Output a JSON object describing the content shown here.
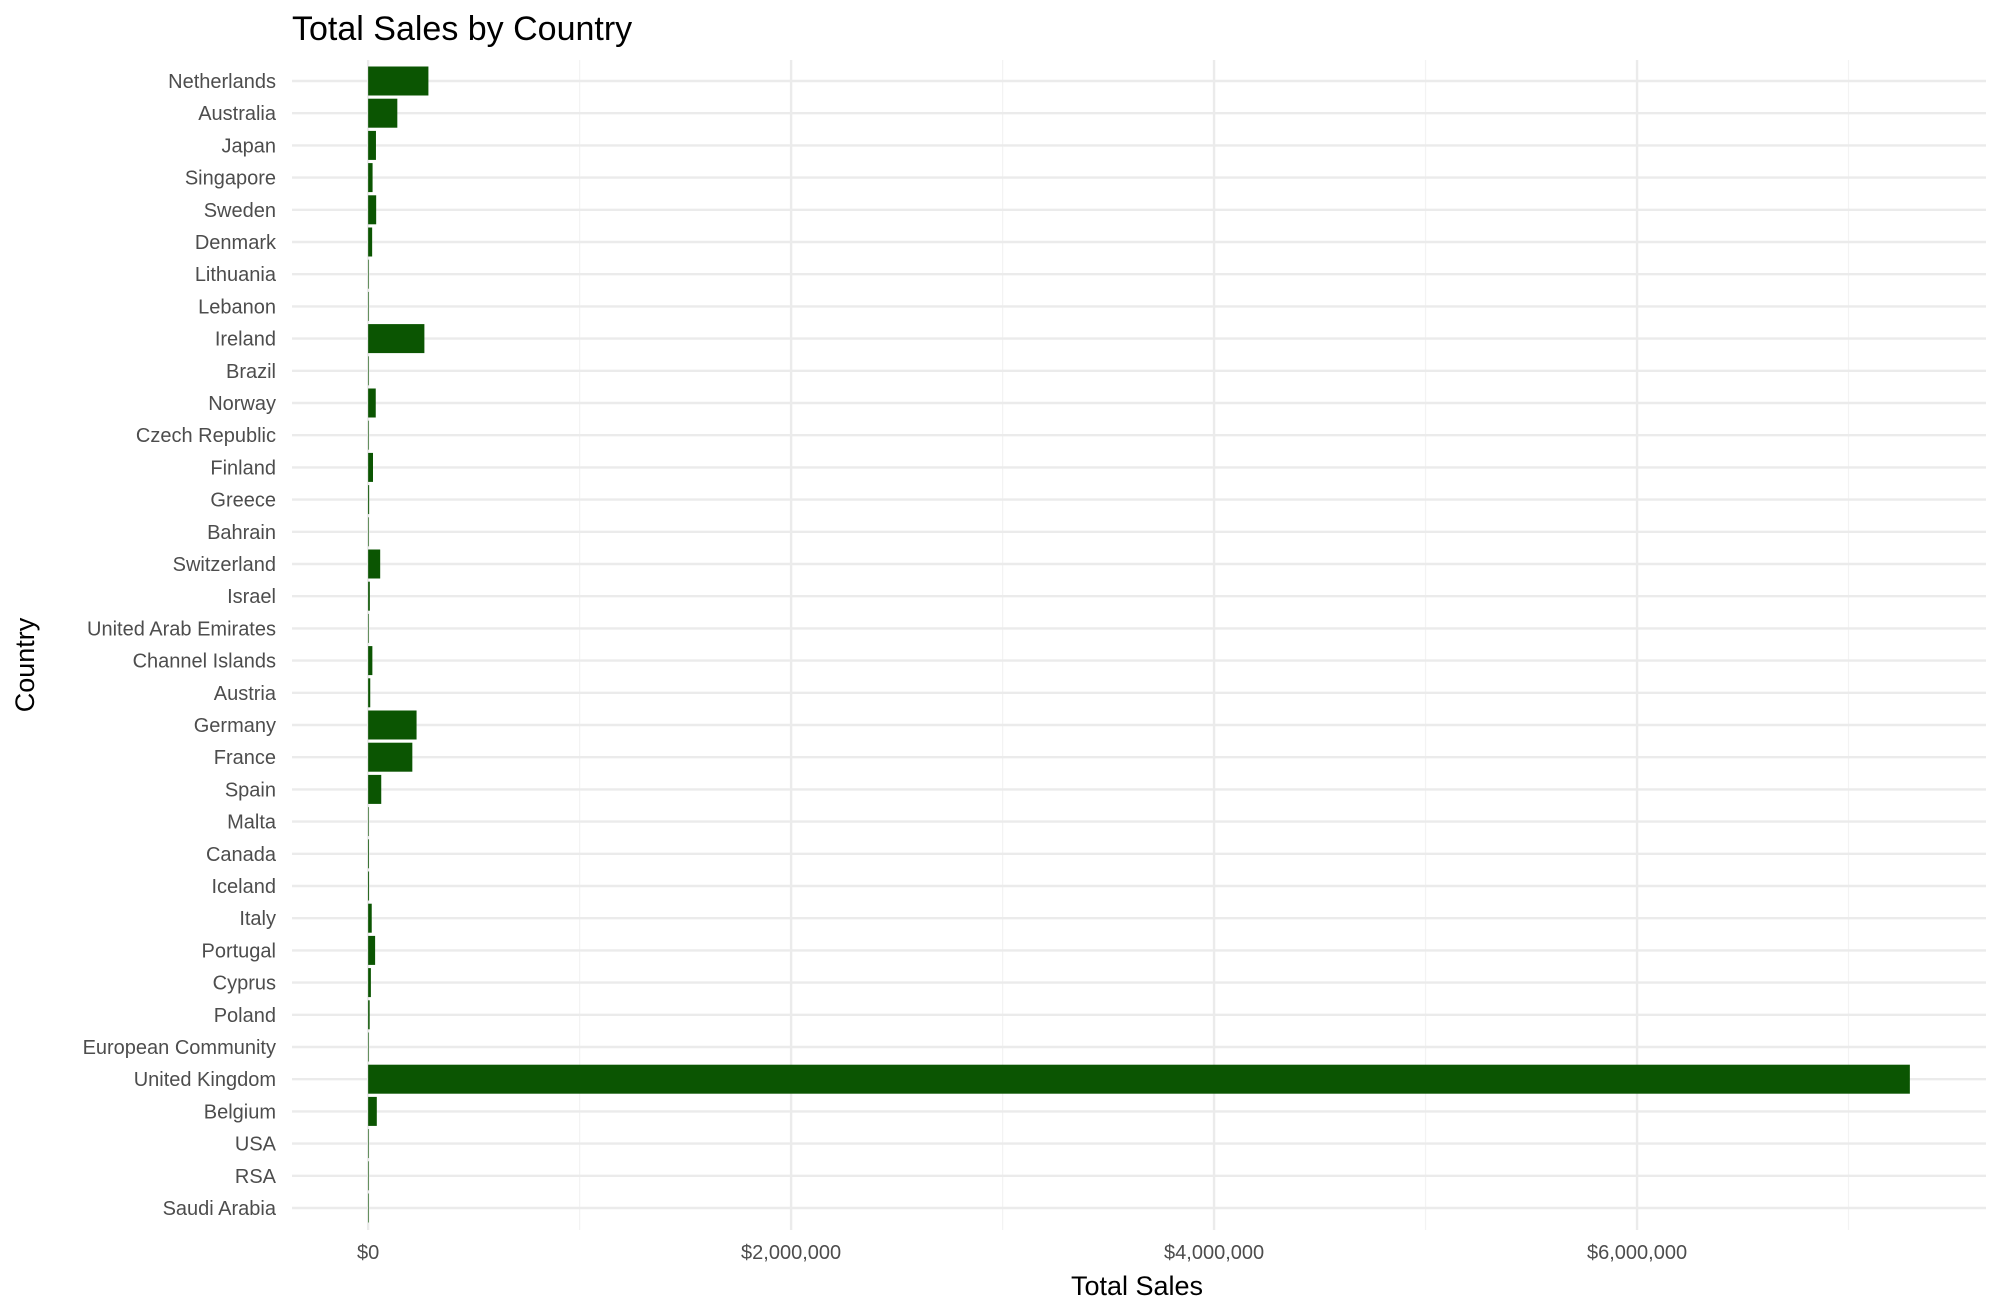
{
  "chart_data": {
    "type": "bar",
    "orientation": "horizontal",
    "title": "Total Sales by Country",
    "xlabel": "Total Sales",
    "ylabel": "Country",
    "xlim": [
      -360000,
      7650000
    ],
    "x_ticks": [
      0,
      2000000,
      4000000,
      6000000
    ],
    "x_tick_labels": [
      "$0",
      "$2,000,000",
      "$4,000,000",
      "$6,000,000"
    ],
    "grid": true,
    "bar_color": "#0b5502",
    "categories": [
      "Netherlands",
      "Australia",
      "Japan",
      "Singapore",
      "Sweden",
      "Denmark",
      "Lithuania",
      "Lebanon",
      "Ireland",
      "Brazil",
      "Norway",
      "Czech Republic",
      "Finland",
      "Greece",
      "Bahrain",
      "Switzerland",
      "Israel",
      "United Arab Emirates",
      "Channel Islands",
      "Austria",
      "Germany",
      "France",
      "Spain",
      "Malta",
      "Canada",
      "Iceland",
      "Italy",
      "Portugal",
      "Cyprus",
      "Poland",
      "European Community",
      "United Kingdom",
      "Belgium",
      "USA",
      "RSA",
      "Saudi Arabia"
    ],
    "values": [
      285000,
      138000,
      37000,
      21000,
      38000,
      19000,
      1700,
      1700,
      266000,
      1100,
      36000,
      700,
      23000,
      4700,
      550,
      57000,
      8000,
      1900,
      20000,
      10000,
      229000,
      209000,
      62000,
      2500,
      3700,
      4300,
      17000,
      33000,
      13000,
      7200,
      1300,
      7290000,
      41000,
      1700,
      1000,
      130
    ]
  }
}
